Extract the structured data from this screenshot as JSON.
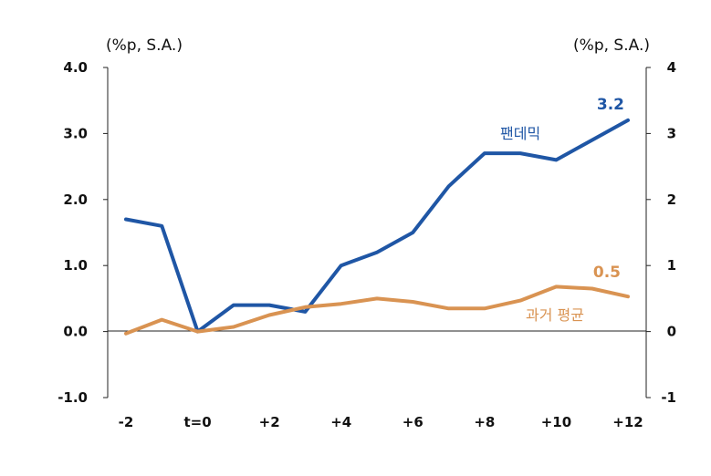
{
  "chart_data": {
    "type": "line",
    "left_unit": "(%p, S.A.)",
    "right_unit": "(%p, S.A.)",
    "x": [
      -2,
      -1,
      0,
      1,
      2,
      3,
      4,
      5,
      6,
      7,
      8,
      9,
      10,
      11,
      12
    ],
    "x_ticks": [
      {
        "x": -2,
        "label": "-2"
      },
      {
        "x": 0,
        "label": "t=0"
      },
      {
        "x": 2,
        "label": "+2"
      },
      {
        "x": 4,
        "label": "+4"
      },
      {
        "x": 6,
        "label": "+6"
      },
      {
        "x": 8,
        "label": "+8"
      },
      {
        "x": 10,
        "label": "+10"
      },
      {
        "x": 12,
        "label": "+12"
      }
    ],
    "ylim": [
      -1,
      4
    ],
    "left_ticks": [
      {
        "v": 4,
        "label": "4.0"
      },
      {
        "v": 3,
        "label": "3.0"
      },
      {
        "v": 2,
        "label": "2.0"
      },
      {
        "v": 1,
        "label": "1.0"
      },
      {
        "v": 0,
        "label": "0.0"
      },
      {
        "v": -1,
        "label": "-1.0"
      }
    ],
    "right_ticks": [
      {
        "v": 4,
        "label": "4"
      },
      {
        "v": 3,
        "label": "3"
      },
      {
        "v": 2,
        "label": "2"
      },
      {
        "v": 1,
        "label": "1"
      },
      {
        "v": 0,
        "label": "0"
      },
      {
        "v": -1,
        "label": "-1"
      }
    ],
    "series": [
      {
        "name": "팬데믹",
        "color": "#1f56a5",
        "values": [
          1.7,
          1.6,
          0.0,
          0.4,
          0.4,
          0.3,
          1.0,
          1.2,
          1.5,
          2.2,
          2.7,
          2.7,
          2.6,
          2.9,
          3.2
        ],
        "end_label": "3.2"
      },
      {
        "name": "과거 평균",
        "color": "#d99352",
        "values": [
          -0.03,
          0.18,
          0.0,
          0.07,
          0.25,
          0.37,
          0.42,
          0.5,
          0.45,
          0.35,
          0.35,
          0.47,
          0.68,
          0.65,
          0.53
        ],
        "end_label": "0.5"
      }
    ]
  }
}
